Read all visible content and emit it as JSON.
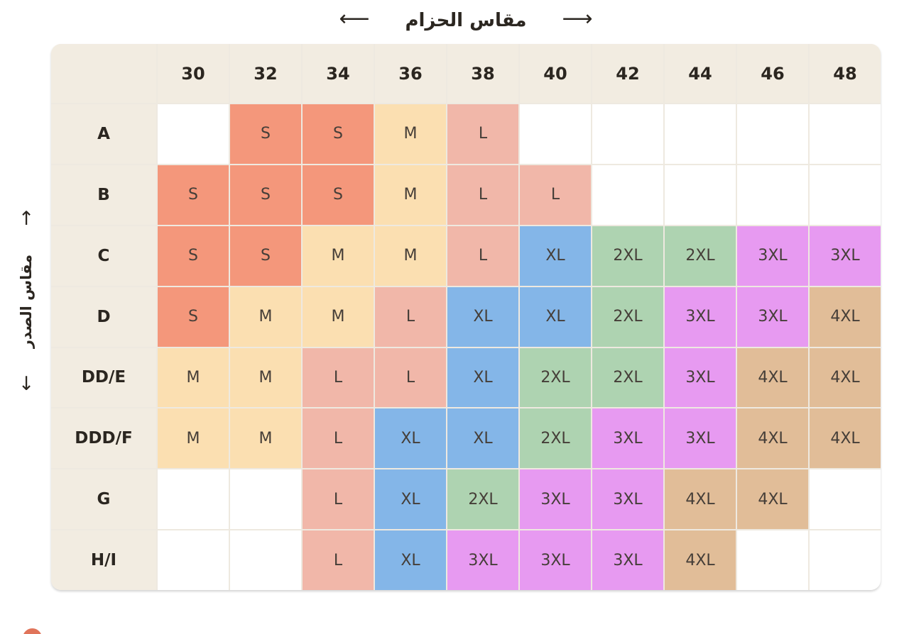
{
  "top_axis": {
    "label": "مقاس الحزام",
    "left_arrow": "⟵",
    "right_arrow": "⟶"
  },
  "left_axis": {
    "label": "مقاس الصدر",
    "up_arrow": "↑",
    "down_arrow": "↓"
  },
  "theme": {
    "header_bg": "#f2ece1",
    "grid_line": "#eee9e0",
    "header_text": "#2b2620",
    "cell_text": "#453e38",
    "bullet": "#e0745a"
  },
  "chart_data": {
    "type": "table",
    "title": "مقاس الحزام",
    "xlabel": "مقاس الحزام",
    "ylabel": "مقاس الصدر",
    "columns": [
      "30",
      "32",
      "34",
      "36",
      "38",
      "40",
      "42",
      "44",
      "46",
      "48"
    ],
    "rows": [
      "A",
      "B",
      "C",
      "D",
      "DD/E",
      "DDD/F",
      "G",
      "H/I"
    ],
    "values": [
      [
        null,
        "S",
        "S",
        "M",
        "L",
        null,
        null,
        null,
        null,
        null
      ],
      [
        "S",
        "S",
        "S",
        "M",
        "L",
        "L",
        null,
        null,
        null,
        null
      ],
      [
        "S",
        "S",
        "M",
        "M",
        "L",
        "XL",
        "2XL",
        "2XL",
        "3XL",
        "3XL"
      ],
      [
        "S",
        "M",
        "M",
        "L",
        "XL",
        "XL",
        "2XL",
        "3XL",
        "3XL",
        "4XL"
      ],
      [
        "M",
        "M",
        "L",
        "L",
        "XL",
        "2XL",
        "2XL",
        "3XL",
        "4XL",
        "4XL"
      ],
      [
        "M",
        "M",
        "L",
        "XL",
        "XL",
        "2XL",
        "3XL",
        "3XL",
        "4XL",
        "4XL"
      ],
      [
        null,
        null,
        "L",
        "XL",
        "2XL",
        "3XL",
        "3XL",
        "4XL",
        "4XL",
        null
      ],
      [
        null,
        null,
        "L",
        "XL",
        "3XL",
        "3XL",
        "3XL",
        "4XL",
        null,
        null
      ]
    ],
    "legend": {
      "S": "#f4977b",
      "M": "#fbdfb1",
      "L": "#f1b7a9",
      "XL": "#84b6e8",
      "2XL": "#aed3b1",
      "3XL": "#e79af1",
      "4XL": "#e1bd98"
    },
    "legend_position": "none",
    "grid": true
  }
}
